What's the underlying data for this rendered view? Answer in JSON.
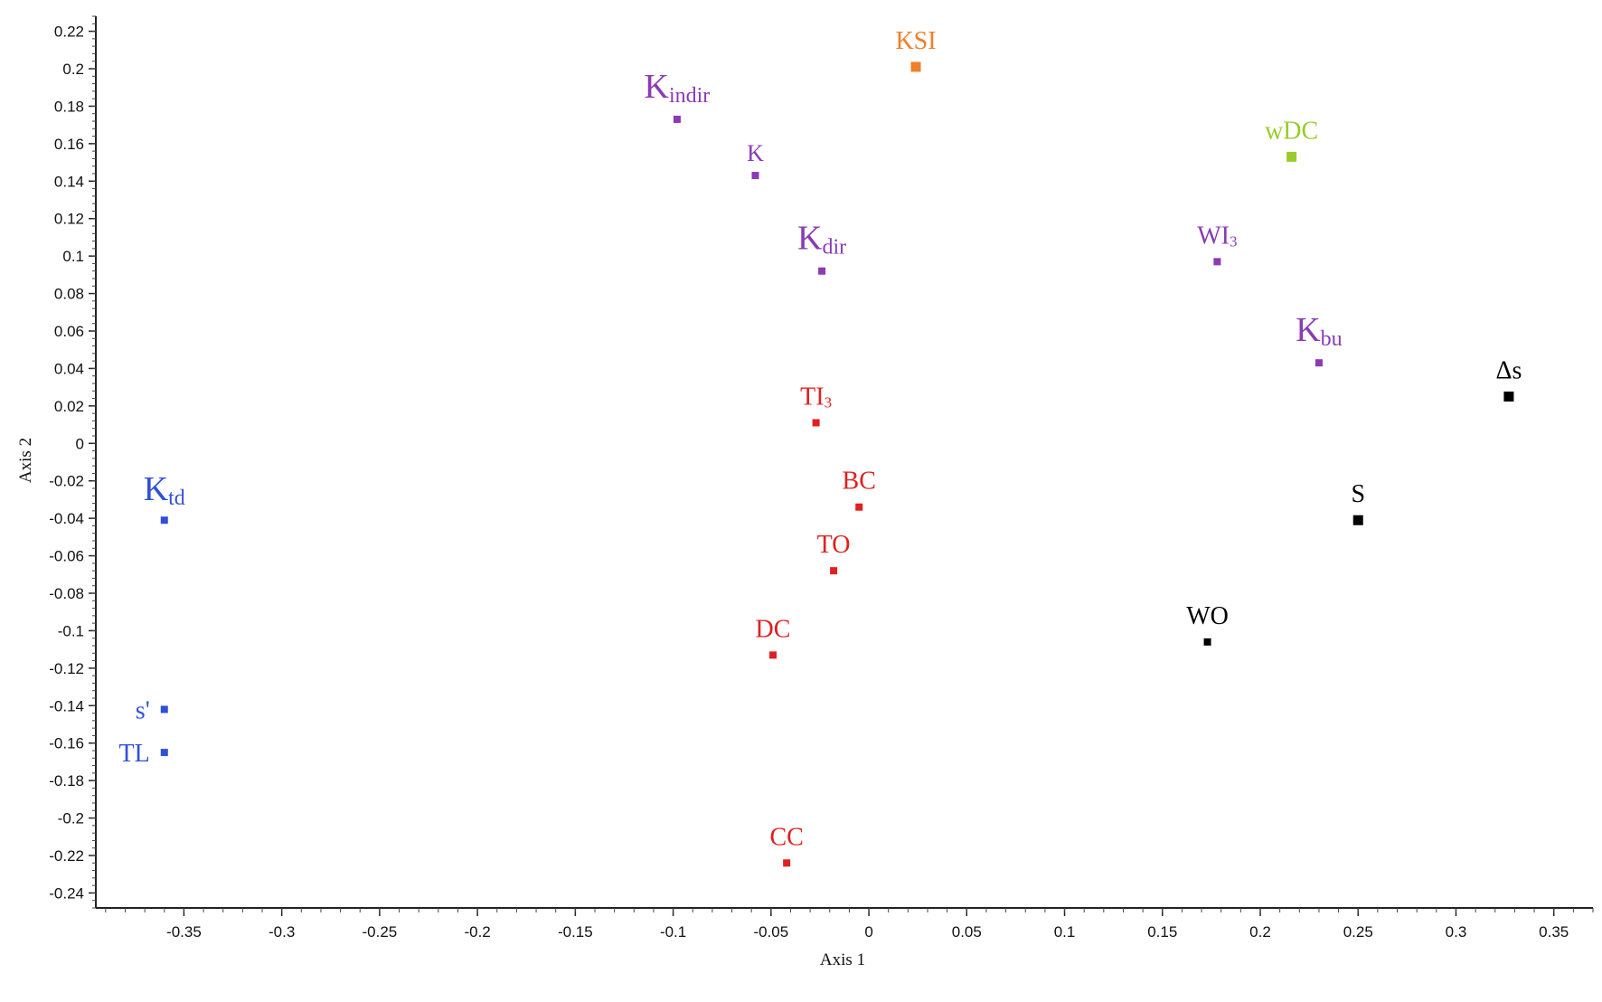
{
  "chart_data": {
    "type": "scatter",
    "xlabel": "Axis 1",
    "ylabel": "Axis 2",
    "xlim": [
      -0.395,
      0.37
    ],
    "ylim": [
      -0.248,
      0.228
    ],
    "x_ticks": [
      -0.35,
      -0.3,
      -0.25,
      -0.2,
      -0.15,
      -0.1,
      -0.05,
      0,
      0.05,
      0.1,
      0.15,
      0.2,
      0.25,
      0.3,
      0.35
    ],
    "x_tick_labels": [
      "-0.35",
      "-0.3",
      "-0.25",
      "-0.2",
      "-0.15",
      "-0.1",
      "-0.05",
      "0",
      "0.05",
      "0.1",
      "0.15",
      "0.2",
      "0.25",
      "0.3",
      "0.35"
    ],
    "y_ticks": [
      0.22,
      0.2,
      0.18,
      0.16,
      0.14,
      0.12,
      0.1,
      0.08,
      0.06,
      0.04,
      0.02,
      0,
      -0.02,
      -0.04,
      -0.06,
      -0.08,
      -0.1,
      -0.12,
      -0.14,
      -0.16,
      -0.18,
      -0.2,
      -0.22,
      -0.24
    ],
    "y_tick_labels": [
      "0.22",
      "0.2",
      "0.18",
      "0.16",
      "0.14",
      "0.12",
      "0.1",
      "0.08",
      "0.06",
      "0.04",
      "0.02",
      "0",
      "-0.02",
      "-0.04",
      "-0.06",
      "-0.08",
      "-0.1",
      "-0.12",
      "-0.14",
      "-0.16",
      "-0.18",
      "-0.2",
      "-0.22",
      "-0.24"
    ],
    "grid": false,
    "legend": "none",
    "points": [
      {
        "label": "KSI",
        "sub": "",
        "x": 0.024,
        "y": 0.201,
        "color": "#f07f2a",
        "marker_size": "large"
      },
      {
        "label": "K",
        "sub": "indir",
        "x": -0.098,
        "y": 0.173,
        "color": "#8a3bb5",
        "marker_size": "small"
      },
      {
        "label": "K",
        "sub": "",
        "x": -0.058,
        "y": 0.143,
        "color": "#8a3bb5",
        "marker_size": "small"
      },
      {
        "label": "wDC",
        "sub": "",
        "x": 0.216,
        "y": 0.153,
        "color": "#99cc2a",
        "marker_size": "large"
      },
      {
        "label": "K",
        "sub": "dir",
        "x": -0.024,
        "y": 0.092,
        "color": "#8a3bb5",
        "marker_size": "small"
      },
      {
        "label": "WI",
        "sub": "3",
        "x": 0.178,
        "y": 0.097,
        "color": "#8a3bb5",
        "marker_size": "small"
      },
      {
        "label": "K",
        "sub": "bu",
        "x": 0.23,
        "y": 0.043,
        "color": "#8a3bb5",
        "marker_size": "small"
      },
      {
        "label": "Δs",
        "sub": "",
        "x": 0.327,
        "y": 0.025,
        "color": "#000000",
        "marker_size": "large"
      },
      {
        "label": "TI",
        "sub": "3",
        "x": -0.027,
        "y": 0.011,
        "color": "#e02020",
        "marker_size": "small"
      },
      {
        "label": "K",
        "sub": "td",
        "x": -0.36,
        "y": -0.041,
        "color": "#3050d8",
        "marker_size": "small"
      },
      {
        "label": "BC",
        "sub": "",
        "x": -0.005,
        "y": -0.034,
        "color": "#e02020",
        "marker_size": "small"
      },
      {
        "label": "S",
        "sub": "",
        "x": 0.25,
        "y": -0.041,
        "color": "#000000",
        "marker_size": "large"
      },
      {
        "label": "TO",
        "sub": "",
        "x": -0.018,
        "y": -0.068,
        "color": "#e02020",
        "marker_size": "small"
      },
      {
        "label": "WO",
        "sub": "",
        "x": 0.173,
        "y": -0.106,
        "color": "#000000",
        "marker_size": "small"
      },
      {
        "label": "DC",
        "sub": "",
        "x": -0.049,
        "y": -0.113,
        "color": "#e02020",
        "marker_size": "small"
      },
      {
        "label": "s'",
        "sub": "",
        "x": -0.36,
        "y": -0.142,
        "color": "#3050d8",
        "marker_size": "small"
      },
      {
        "label": "TL",
        "sub": "",
        "x": -0.36,
        "y": -0.165,
        "color": "#3050d8",
        "marker_size": "small"
      },
      {
        "label": "CC",
        "sub": "",
        "x": -0.042,
        "y": -0.224,
        "color": "#e02020",
        "marker_size": "small"
      }
    ]
  }
}
